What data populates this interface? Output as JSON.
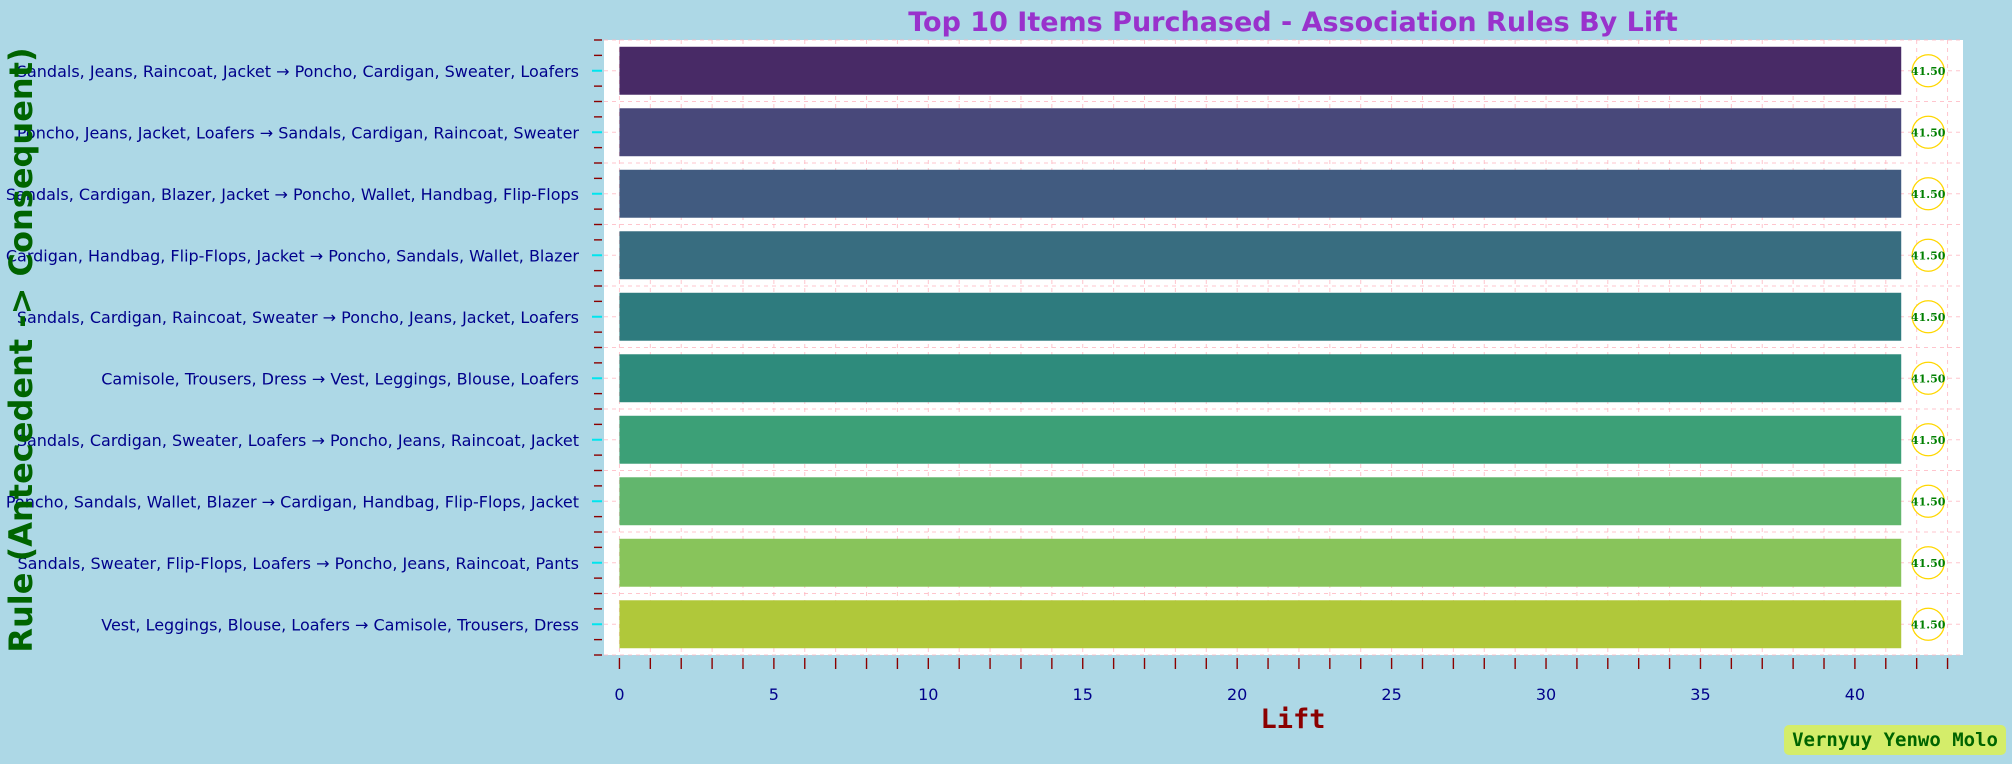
{
  "chart_data": {
    "type": "bar",
    "orientation": "horizontal",
    "title": "Top 10 Items Purchased - Association Rules By Lift",
    "xlabel": "Lift",
    "ylabel": "Rule (Antecedent -> Consequent)",
    "categories": [
      "Sandals, Jeans, Raincoat, Jacket → Poncho, Cardigan, Sweater, Loafers",
      "Poncho, Jeans, Jacket, Loafers → Sandals, Cardigan, Raincoat, Sweater",
      "Sandals, Cardigan, Blazer, Jacket → Poncho, Wallet, Handbag, Flip-Flops",
      "Cardigan, Handbag, Flip-Flops, Jacket → Poncho, Sandals, Wallet, Blazer",
      "Sandals, Cardigan, Raincoat, Sweater → Poncho, Jeans, Jacket, Loafers",
      "Camisole, Trousers, Dress → Vest, Leggings, Blouse, Loafers",
      "Sandals, Cardigan, Sweater, Loafers → Poncho, Jeans, Raincoat, Jacket",
      "Poncho, Sandals, Wallet, Blazer → Cardigan, Handbag, Flip-Flops, Jacket",
      "Sandals, Sweater, Flip-Flops, Loafers → Poncho, Jeans, Raincoat, Pants",
      "Vest, Leggings, Blouse, Loafers → Camisole, Trousers, Dress"
    ],
    "values": [
      41.5,
      41.5,
      41.5,
      41.5,
      41.5,
      41.5,
      41.5,
      41.5,
      41.5,
      41.5
    ],
    "data_labels": [
      "41.50",
      "41.50",
      "41.50",
      "41.50",
      "41.50",
      "41.50",
      "41.50",
      "41.50",
      "41.50",
      "41.50"
    ],
    "bar_colors": [
      "#482a66",
      "#48487a",
      "#415b80",
      "#386d80",
      "#2e7b7e",
      "#2e8b7c",
      "#3ca077",
      "#62b66d",
      "#88c45b",
      "#b0c83a"
    ],
    "xlim": [
      -0.5,
      43.5
    ],
    "xticks": [
      0,
      5,
      10,
      15,
      20,
      25,
      30,
      35,
      40
    ],
    "xtick_labels": [
      "0",
      "5",
      "10",
      "15",
      "20",
      "25",
      "30",
      "35",
      "40"
    ],
    "grid": true,
    "colors": {
      "background": "#add8e6",
      "plot_background": "#ffffff",
      "title": "#9932cc",
      "ylabel": "#006400",
      "xlabel": "#8b0000",
      "category_labels": "#00008b",
      "tick_labels": "#00008b",
      "data_labels": "#008000",
      "data_label_ring": "#ffd700",
      "ytick_marks": "#00e5ee",
      "minor_ticks": "#8b0000",
      "grid": "#ffb6c1"
    }
  },
  "watermark": {
    "text": "Vernyuy Yenwo Molo",
    "background": "#d4ed6a",
    "color": "#006400"
  }
}
